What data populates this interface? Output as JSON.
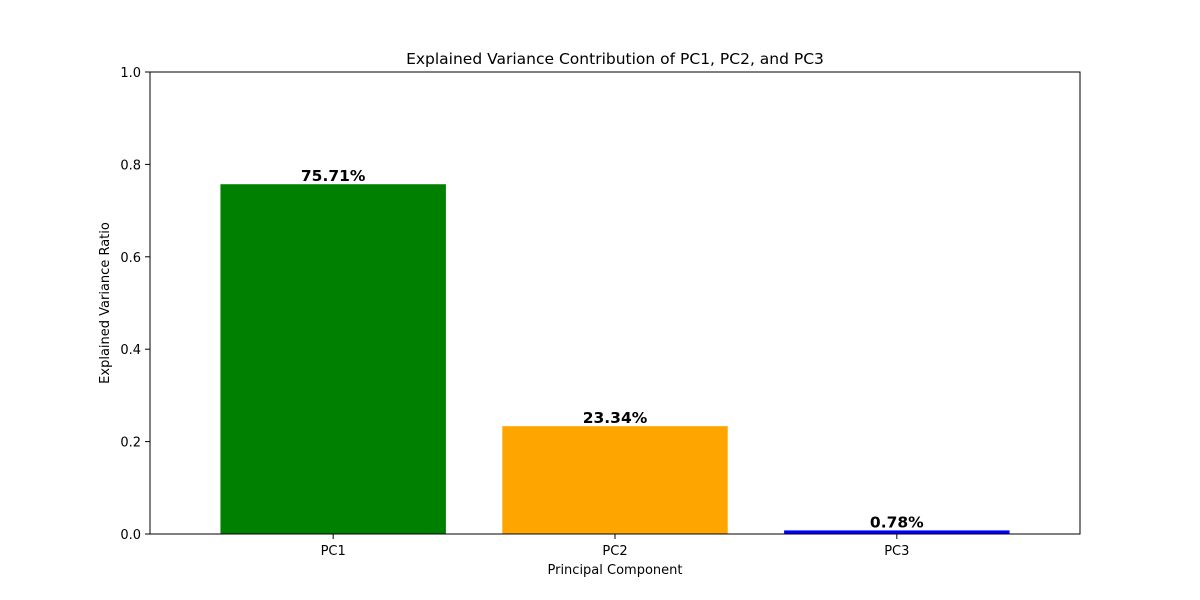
{
  "chart_data": {
    "type": "bar",
    "title": "Explained Variance Contribution of PC1, PC2, and PC3",
    "xlabel": "Principal Component",
    "ylabel": "Explained Variance Ratio",
    "categories": [
      "PC1",
      "PC2",
      "PC3"
    ],
    "values": [
      0.7571,
      0.2334,
      0.0078
    ],
    "value_labels": [
      "75.71%",
      "23.34%",
      "0.78%"
    ],
    "colors": [
      "#008000",
      "#ffa500",
      "#0000ff"
    ],
    "ylim": [
      0,
      1.0
    ],
    "yticks": [
      "0.0",
      "0.2",
      "0.4",
      "0.6",
      "0.8",
      "1.0"
    ],
    "grid": false,
    "legend": "none"
  }
}
